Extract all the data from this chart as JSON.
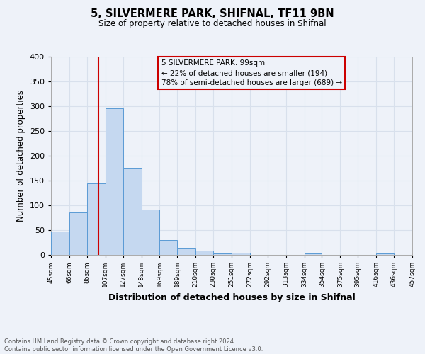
{
  "title": "5, SILVERMERE PARK, SHIFNAL, TF11 9BN",
  "subtitle": "Size of property relative to detached houses in Shifnal",
  "xlabel": "Distribution of detached houses by size in Shifnal",
  "ylabel": "Number of detached properties",
  "bar_left_edges": [
    45,
    66,
    86,
    107,
    127,
    148,
    169,
    189,
    210,
    230,
    251,
    272,
    292,
    313,
    334,
    354,
    375,
    395,
    416,
    436
  ],
  "bar_widths": [
    21,
    20,
    21,
    20,
    21,
    21,
    20,
    21,
    20,
    21,
    21,
    20,
    21,
    21,
    20,
    21,
    20,
    21,
    20,
    21
  ],
  "bar_heights": [
    47,
    86,
    145,
    296,
    175,
    92,
    30,
    15,
    8,
    3,
    4,
    0,
    0,
    0,
    3,
    0,
    0,
    0,
    3,
    0
  ],
  "bar_facecolor": "#c5d8f0",
  "bar_edgecolor": "#5b9bd5",
  "xlim_left": 45,
  "xlim_right": 457,
  "ylim_top": 400,
  "ylim_bottom": 0,
  "yticks": [
    0,
    50,
    100,
    150,
    200,
    250,
    300,
    350,
    400
  ],
  "xtick_labels": [
    "45sqm",
    "66sqm",
    "86sqm",
    "107sqm",
    "127sqm",
    "148sqm",
    "169sqm",
    "189sqm",
    "210sqm",
    "230sqm",
    "251sqm",
    "272sqm",
    "292sqm",
    "313sqm",
    "334sqm",
    "354sqm",
    "375sqm",
    "395sqm",
    "416sqm",
    "436sqm",
    "457sqm"
  ],
  "xtick_positions": [
    45,
    66,
    86,
    107,
    127,
    148,
    169,
    189,
    210,
    230,
    251,
    272,
    292,
    313,
    334,
    354,
    375,
    395,
    416,
    436,
    457
  ],
  "property_size": 99,
  "vline_color": "#cc0000",
  "annotation_title": "5 SILVERMERE PARK: 99sqm",
  "annotation_line2": "← 22% of detached houses are smaller (194)",
  "annotation_line3": "78% of semi-detached houses are larger (689) →",
  "annotation_box_color": "#cc0000",
  "annotation_text_color": "#000000",
  "grid_color": "#d8e0ec",
  "background_color": "#eef2f9",
  "footnote1": "Contains HM Land Registry data © Crown copyright and database right 2024.",
  "footnote2": "Contains public sector information licensed under the Open Government Licence v3.0."
}
